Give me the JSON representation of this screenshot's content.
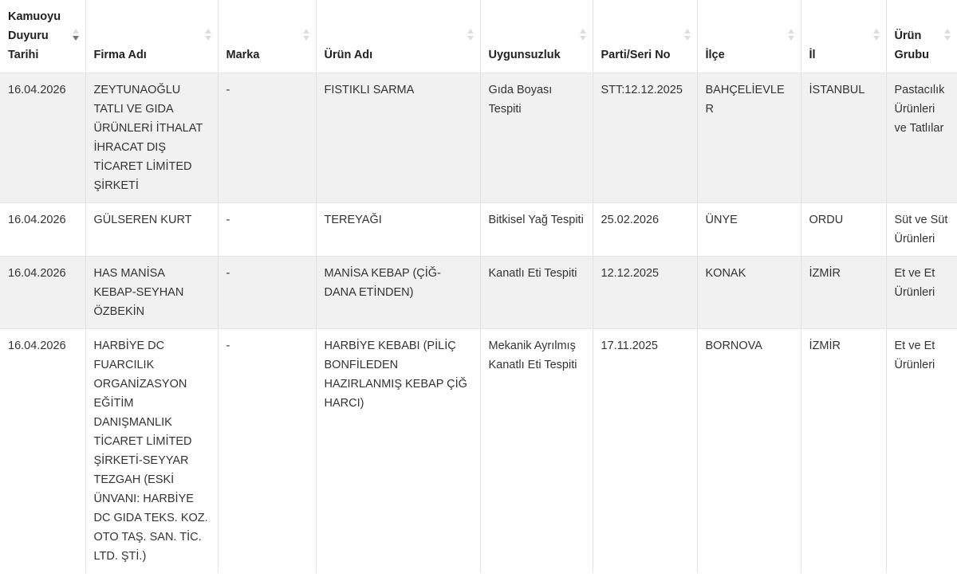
{
  "table": {
    "columns": [
      {
        "label": "Kamuoyu Duyuru Tarihi",
        "sort": "desc"
      },
      {
        "label": "Firma Adı",
        "sort": "none"
      },
      {
        "label": "Marka",
        "sort": "none"
      },
      {
        "label": "Ürün Adı",
        "sort": "none"
      },
      {
        "label": "Uygunsuzluk",
        "sort": "none"
      },
      {
        "label": "Parti/Seri No",
        "sort": "none"
      },
      {
        "label": "İlçe",
        "sort": "none"
      },
      {
        "label": "İl",
        "sort": "none"
      },
      {
        "label": "Ürün Grubu",
        "sort": "none"
      }
    ],
    "rows": [
      [
        "16.04.2026",
        "ZEYTUNAOĞLU TATLI VE GIDA ÜRÜNLERİ İTHALAT İHRACAT DIŞ TİCARET LİMİTED ŞİRKETİ",
        "-",
        "FISTIKLI SARMA",
        "Gıda Boyası Tespiti",
        "STT:12.12.2025",
        "BAHÇELİEVLER",
        "İSTANBUL",
        "Pastacılık Ürünleri ve Tatlılar"
      ],
      [
        "16.04.2026",
        "GÜLSEREN KURT",
        "-",
        "TEREYAĞI",
        "Bitkisel Yağ Tespiti",
        "25.02.2026",
        "ÜNYE",
        "ORDU",
        "Süt ve Süt Ürünleri"
      ],
      [
        "16.04.2026",
        "HAS MANİSA KEBAP-SEYHAN ÖZBEKİN",
        "-",
        "MANİSA KEBAP (ÇİĞ-DANA ETİNDEN)",
        "Kanatlı Eti Tespiti",
        "12.12.2025",
        "KONAK",
        "İZMİR",
        "Et ve Et Ürünleri"
      ],
      [
        "16.04.2026",
        "HARBİYE DC FUARCILIK ORGANİZASYON EĞİTİM DANIŞMANLIK TİCARET LİMİTED ŞİRKETİ-SEYYAR TEZGAH (ESKİ ÜNVANI: HARBİYE DC GIDA TEKS. KOZ. OTO TAŞ. SAN. TİC. LTD. ŞTİ.)",
        "-",
        "HARBİYE KEBABI (PİLİÇ BONFİLEDEN HAZIRLANMIŞ KEBAP ÇİĞ HARCI)",
        "Mekanik Ayrılmış Kanatlı Eti Tespiti",
        "17.11.2025",
        "BORNOVA",
        "İZMİR",
        "Et ve Et Ürünleri"
      ]
    ]
  }
}
